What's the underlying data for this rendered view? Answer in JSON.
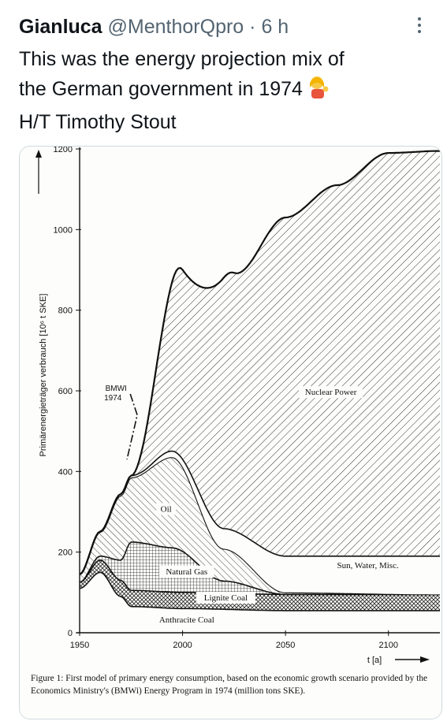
{
  "tweet": {
    "author_name": "Gianluca",
    "handle": "@MenthorQpro",
    "separator": "·",
    "time": "6 h",
    "more_icon": "more-vertical-icon",
    "text_lines": [
      "This was the energy projection mix of",
      "the German government in 1974",
      "H/T Timothy Stout"
    ],
    "emoji": "person-tipping-hand-emoji"
  },
  "chart_data": {
    "type": "area",
    "ylabel": "Primärenergieträger verbrauch [10⁶ t SKE]",
    "xlabel": "t [a]",
    "x_ticks": [
      "1950",
      "2000",
      "2050",
      "2100"
    ],
    "y_ticks": [
      "0",
      "200",
      "400",
      "600",
      "800",
      "1000",
      "1200"
    ],
    "xlim": [
      1950,
      2125
    ],
    "ylim": [
      0,
      1200
    ],
    "annotation": "BMWI 1974",
    "series": [
      {
        "name": "Anthracite Coal",
        "x": [
          1950,
          1960,
          1970,
          1975,
          2000,
          2050,
          2125
        ],
        "values": [
          110,
          150,
          90,
          65,
          60,
          55,
          55
        ]
      },
      {
        "name": "Lignite Coal",
        "x": [
          1950,
          1960,
          1970,
          1975,
          2000,
          2050,
          2125
        ],
        "values": [
          15,
          30,
          40,
          40,
          40,
          40,
          40
        ]
      },
      {
        "name": "Natural Gas",
        "x": [
          1950,
          1960,
          1970,
          1975,
          1995,
          2020,
          2050,
          2125
        ],
        "values": [
          0,
          10,
          50,
          120,
          110,
          30,
          0,
          0
        ]
      },
      {
        "name": "Oil",
        "x": [
          1950,
          1960,
          1970,
          1975,
          1995,
          2020,
          2050,
          2125
        ],
        "values": [
          20,
          60,
          160,
          160,
          225,
          80,
          5,
          0
        ]
      },
      {
        "name": "Sun, Water, Misc.",
        "x": [
          1950,
          1980,
          1995,
          2020,
          2050,
          2125
        ],
        "values": [
          0,
          5,
          15,
          50,
          90,
          95
        ]
      },
      {
        "name": "Nuclear Power",
        "x": [
          1950,
          1975,
          2000,
          2025,
          2050,
          2075,
          2100,
          2125
        ],
        "values": [
          0,
          0,
          470,
          640,
          840,
          920,
          1000,
          1005
        ]
      }
    ],
    "caption": "Figure 1: First model of primary energy consumption, based on the economic growth scenario provided by the Economics Ministry's (BMWi) Energy Program in 1974 (million tons SKE)."
  }
}
